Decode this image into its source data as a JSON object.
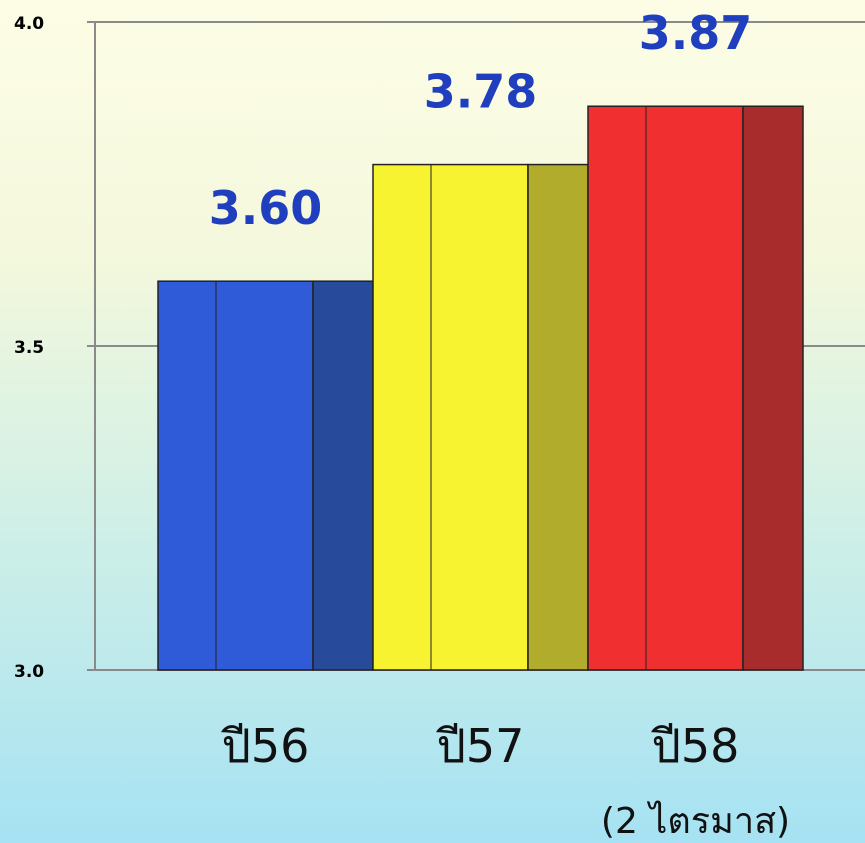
{
  "chart_data": {
    "type": "bar",
    "categories": [
      "ปี56",
      "ปี57",
      "ปี58"
    ],
    "subcategory_notes": [
      "",
      "",
      "(2 ไตรมาส)"
    ],
    "values": [
      3.6,
      3.78,
      3.87
    ],
    "data_labels": [
      "3.60",
      "3.78",
      "3.87"
    ],
    "title": "",
    "xlabel": "",
    "ylabel": "",
    "ylim": [
      3.0,
      4.0
    ],
    "yticks": [
      3.0,
      3.5,
      4.0
    ],
    "ytick_labels": [
      "3.0",
      "3.5",
      "4.0"
    ],
    "grid": true,
    "style": "3d-bar",
    "colors": [
      "#2f5bd9",
      "#f7f330",
      "#f03030"
    ],
    "side_colors": [
      "#274a9a",
      "#b2ac2c",
      "#a82c2c"
    ],
    "data_label_color": "#1f3fbf"
  }
}
